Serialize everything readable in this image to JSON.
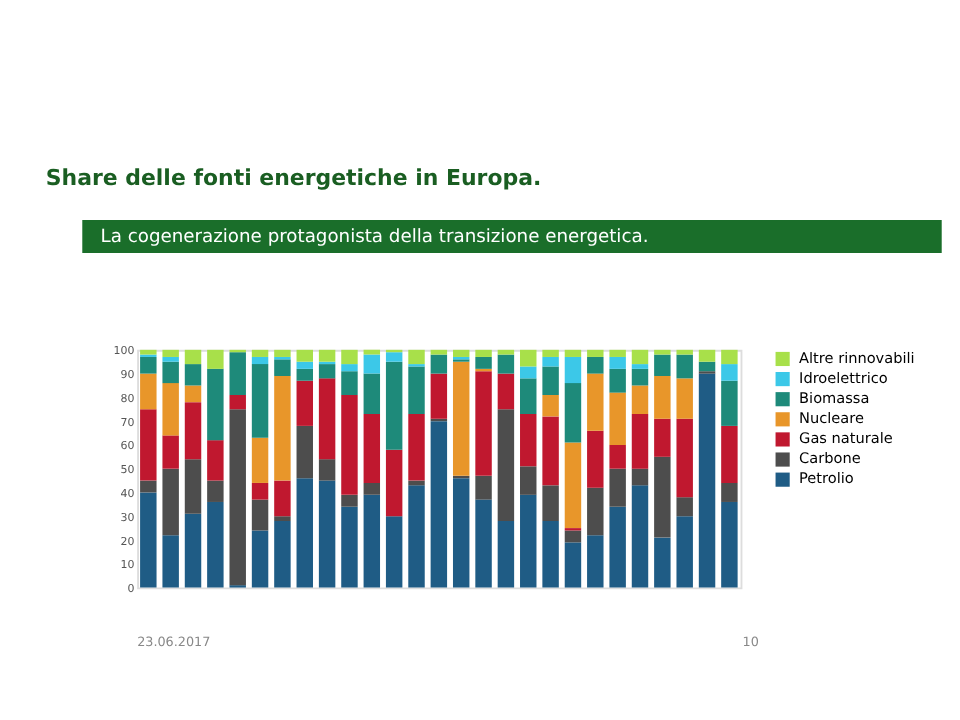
{
  "chart_data": {
    "type": "bar",
    "stacked": true,
    "title": "Share delle fonti energetiche in Europa.",
    "annotations": [
      "La cogenerazione protagonista della transizione energetica.",
      "23.06.2017",
      "10"
    ],
    "categories": [
      null,
      null,
      null,
      null,
      null,
      null,
      null,
      null,
      null,
      null,
      null,
      null,
      null,
      null,
      null,
      null,
      null,
      null,
      null,
      null,
      null,
      null,
      null,
      null,
      null,
      null,
      null
    ],
    "series": [
      {
        "name": "Petrolio",
        "color": "#1f5c85",
        "values": [
          40,
          22,
          31,
          36,
          1,
          24,
          28,
          46,
          45,
          34,
          39,
          30,
          43,
          70,
          46,
          37,
          28,
          39,
          28,
          19,
          22,
          34,
          43,
          21,
          30,
          90,
          36
        ]
      },
      {
        "name": "Carbone",
        "color": "#4d4d4d",
        "values": [
          5,
          28,
          23,
          9,
          74,
          13,
          2,
          22,
          9,
          5,
          5,
          0,
          2,
          1,
          1,
          10,
          47,
          12,
          15,
          5,
          20,
          16,
          7,
          34,
          8,
          1,
          8
        ]
      },
      {
        "name": "Gas naturale",
        "color": "#c0182f",
        "values": [
          30,
          14,
          24,
          17,
          6,
          7,
          15,
          19,
          34,
          42,
          29,
          28,
          28,
          19,
          0,
          44,
          15,
          22,
          29,
          1,
          24,
          10,
          23,
          16,
          33,
          0,
          24
        ]
      },
      {
        "name": "Nucleare",
        "color": "#e8962a",
        "values": [
          15,
          22,
          7,
          0,
          0,
          19,
          44,
          0,
          0,
          0,
          0,
          0,
          0,
          0,
          48,
          1,
          0,
          0,
          9,
          36,
          24,
          22,
          12,
          18,
          17,
          0,
          0
        ]
      },
      {
        "name": "Biomassa",
        "color": "#1e8a7a",
        "values": [
          7,
          9,
          9,
          30,
          18,
          31,
          7,
          5,
          6,
          10,
          17,
          37,
          20,
          8,
          1,
          5,
          8,
          15,
          12,
          25,
          7,
          10,
          7,
          9,
          10,
          4,
          19
        ]
      },
      {
        "name": "Idroelettrico",
        "color": "#3cc8e8",
        "values": [
          1,
          2,
          0,
          0,
          0,
          3,
          1,
          3,
          1,
          3,
          8,
          4,
          1,
          0,
          1,
          0,
          0,
          5,
          4,
          11,
          0,
          5,
          2,
          0,
          0,
          0,
          7
        ]
      },
      {
        "name": "Altre rinnovabili",
        "color": "#a8e04a",
        "values": [
          2,
          3,
          6,
          8,
          1,
          3,
          3,
          5,
          5,
          6,
          2,
          1,
          6,
          2,
          3,
          3,
          2,
          7,
          3,
          3,
          3,
          3,
          6,
          2,
          2,
          5,
          6
        ]
      }
    ],
    "ylim": [
      0,
      100
    ],
    "yticks": [
      0,
      10,
      20,
      30,
      40,
      50,
      60,
      70,
      80,
      90,
      100
    ],
    "grid": false,
    "legend": "right",
    "tick_labels": "y"
  }
}
